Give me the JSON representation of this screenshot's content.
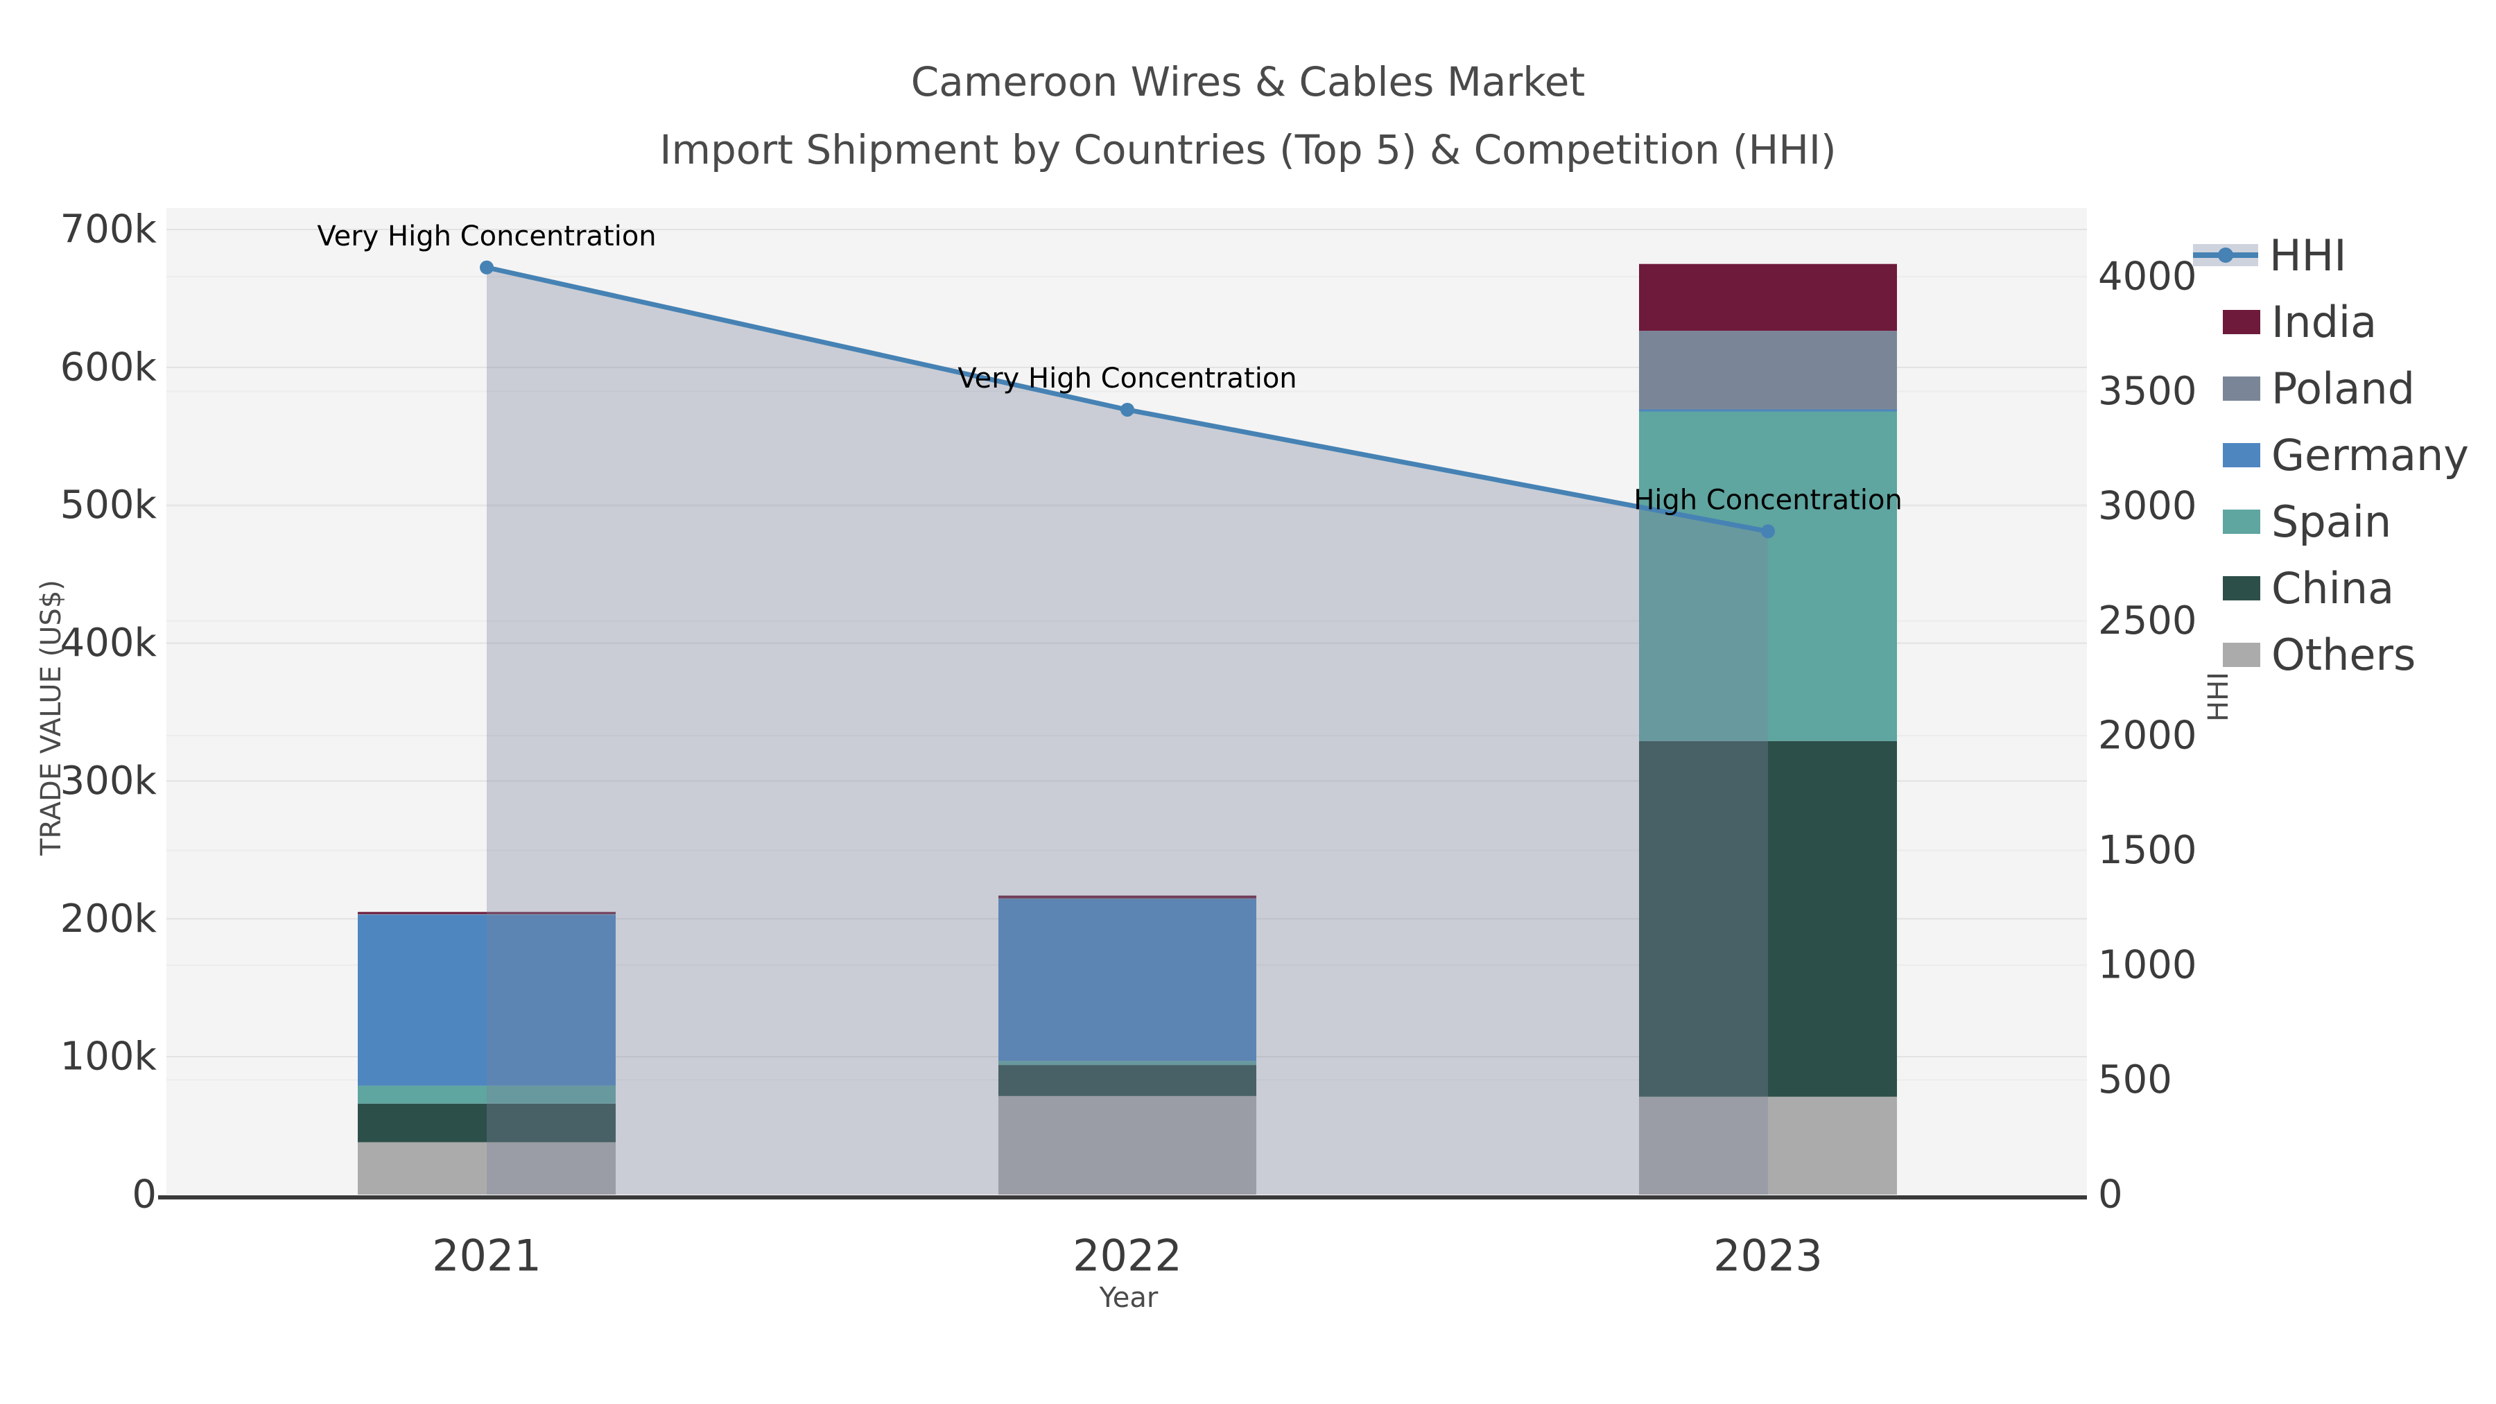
{
  "title": {
    "line1": "Cameroon Wires & Cables Market",
    "line2": "Import Shipment by Countries (Top 5) & Competition (HHI)"
  },
  "axes": {
    "x": {
      "label": "Year",
      "categories": [
        "2021",
        "2022",
        "2023"
      ]
    },
    "y_left": {
      "label": "TRADE VALUE (US$)",
      "max": 700000,
      "ticks": [
        {
          "v": 0,
          "label": "0"
        },
        {
          "v": 100000,
          "label": "100k"
        },
        {
          "v": 200000,
          "label": "200k"
        },
        {
          "v": 300000,
          "label": "300k"
        },
        {
          "v": 400000,
          "label": "400k"
        },
        {
          "v": 500000,
          "label": "500k"
        },
        {
          "v": 600000,
          "label": "600k"
        },
        {
          "v": 700000,
          "label": "700k"
        }
      ]
    },
    "y_right": {
      "label": "HHI",
      "max": 4000,
      "ticks": [
        {
          "v": 0,
          "label": "0"
        },
        {
          "v": 500,
          "label": "500"
        },
        {
          "v": 1000,
          "label": "1000"
        },
        {
          "v": 1500,
          "label": "1500"
        },
        {
          "v": 2000,
          "label": "2000"
        },
        {
          "v": 2500,
          "label": "2500"
        },
        {
          "v": 3000,
          "label": "3000"
        },
        {
          "v": 3500,
          "label": "3500"
        },
        {
          "v": 4000,
          "label": "4000"
        }
      ]
    }
  },
  "legend": [
    {
      "label": "HHI",
      "color": "#4682b4",
      "type": "line"
    },
    {
      "label": "India",
      "color": "#6d1a3b",
      "type": "patch"
    },
    {
      "label": "Poland",
      "color": "#7a8697",
      "type": "patch"
    },
    {
      "label": "Germany",
      "color": "#4e86c0",
      "type": "patch"
    },
    {
      "label": "Spain",
      "color": "#5fa5a0",
      "type": "patch"
    },
    {
      "label": "China",
      "color": "#2d4f4a",
      "type": "patch"
    },
    {
      "label": "Others",
      "color": "#ababab",
      "type": "patch"
    }
  ],
  "chart_data": {
    "type": "bar+line",
    "title": "Cameroon Wires & Cables Market — Import Shipment by Countries (Top 5) & Competition (HHI)",
    "xlabel": "Year",
    "ylabel_left": "TRADE VALUE (US$)",
    "ylabel_right": "HHI",
    "categories": [
      "2021",
      "2022",
      "2023"
    ],
    "y_left_range": [
      0,
      700000
    ],
    "y_right_range": [
      0,
      4000
    ],
    "grid": true,
    "legend_position": "upper right outside",
    "series": [
      {
        "name": "Others",
        "color": "#ababab",
        "values": [
          38000,
          71500,
          71000
        ]
      },
      {
        "name": "China",
        "color": "#2d4f4a",
        "values": [
          28000,
          22500,
          258000
        ]
      },
      {
        "name": "Spain",
        "color": "#5fa5a0",
        "values": [
          13000,
          3000,
          239000
        ]
      },
      {
        "name": "Germany",
        "color": "#4e86c0",
        "values": [
          124000,
          117500,
          1500
        ]
      },
      {
        "name": "Poland",
        "color": "#7a8697",
        "values": [
          500,
          400,
          57000
        ]
      },
      {
        "name": "India",
        "color": "#6d1a3b",
        "values": [
          1500,
          2000,
          48500
        ]
      }
    ],
    "bar_totals": [
      205000,
      216900,
      675000
    ],
    "line": {
      "name": "HHI",
      "color": "#4682b4",
      "fill_color": "rgba(122,131,155,0.35)",
      "values": [
        4040,
        3420,
        2890
      ],
      "annotations": [
        "Very High Concentration",
        "Very High Concentration",
        "High Concentration"
      ]
    },
    "plot_bg": "#f4f4f4",
    "grid_color": "#e4e4e4"
  }
}
